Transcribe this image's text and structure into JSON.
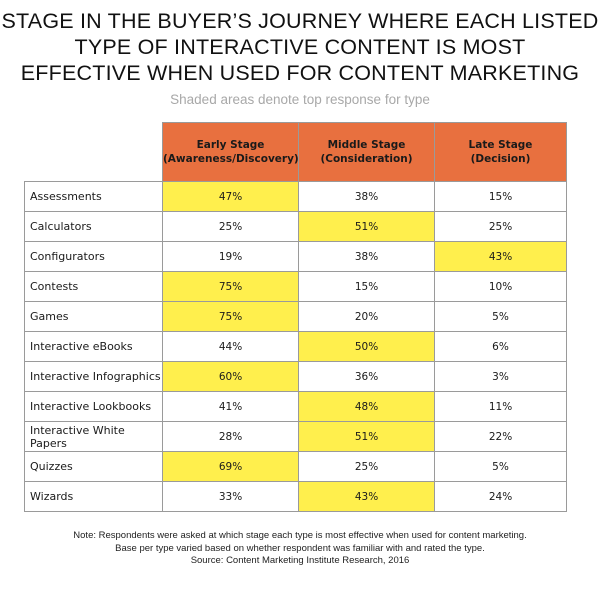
{
  "title_lines": [
    "STAGE IN THE BUYER’S JOURNEY WHERE EACH LISTED",
    "TYPE OF INTERACTIVE CONTENT IS MOST",
    "EFFECTIVE WHEN USED FOR CONTENT MARKETING"
  ],
  "subtitle": "Shaded areas denote top response for type",
  "colors": {
    "header_fill": "#e8703f",
    "highlight_fill": "#ffef4d"
  },
  "chart_data": {
    "type": "table",
    "title": "STAGE IN THE BUYER’S JOURNEY WHERE EACH LISTED TYPE OF INTERACTIVE CONTENT IS MOST EFFECTIVE WHEN USED FOR CONTENT MARKETING",
    "subtitle": "Shaded areas denote top response for type",
    "columns": [
      {
        "line1": "Early Stage",
        "line2": "(Awareness/Discovery)"
      },
      {
        "line1": "Middle Stage",
        "line2": "(Consideration)"
      },
      {
        "line1": "Late Stage",
        "line2": "(Decision)"
      }
    ],
    "rows": [
      {
        "type": "Assessments",
        "values": [
          "47%",
          "38%",
          "15%"
        ],
        "top": 0
      },
      {
        "type": "Calculators",
        "values": [
          "25%",
          "51%",
          "25%"
        ],
        "top": 1
      },
      {
        "type": "Configurators",
        "values": [
          "19%",
          "38%",
          "43%"
        ],
        "top": 2
      },
      {
        "type": "Contests",
        "values": [
          "75%",
          "15%",
          "10%"
        ],
        "top": 0
      },
      {
        "type": "Games",
        "values": [
          "75%",
          "20%",
          "5%"
        ],
        "top": 0
      },
      {
        "type": "Interactive eBooks",
        "values": [
          "44%",
          "50%",
          "6%"
        ],
        "top": 1
      },
      {
        "type": "Interactive Infographics",
        "values": [
          "60%",
          "36%",
          "3%"
        ],
        "top": 0
      },
      {
        "type": "Interactive Lookbooks",
        "values": [
          "41%",
          "48%",
          "11%"
        ],
        "top": 1
      },
      {
        "type": "Interactive White Papers",
        "values": [
          "28%",
          "51%",
          "22%"
        ],
        "top": 1
      },
      {
        "type": "Quizzes",
        "values": [
          "69%",
          "25%",
          "5%"
        ],
        "top": 0
      },
      {
        "type": "Wizards",
        "values": [
          "33%",
          "43%",
          "24%"
        ],
        "top": 1
      }
    ]
  },
  "note_lines": [
    "Note: Respondents were asked at which stage each type is most effective when used for content marketing.",
    "Base per type varied based on whether respondent was familiar with and rated the type.",
    "Source: Content Marketing Institute Research, 2016"
  ]
}
